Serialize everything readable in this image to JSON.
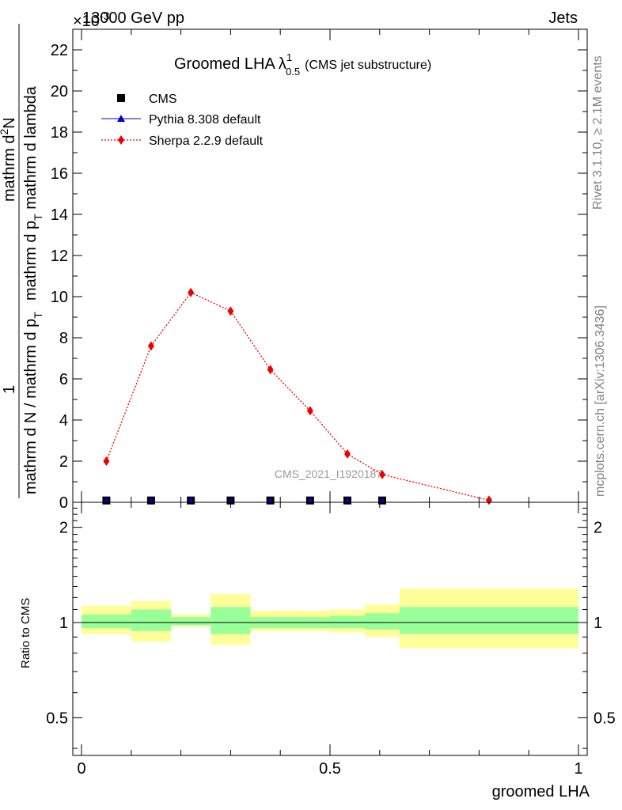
{
  "header": {
    "left": "13000 GeV pp",
    "right": "Jets",
    "exponent": "×10",
    "exponent_power": "-3"
  },
  "side": {
    "top": "Rivet 3.1.10, ≥ 2.1M events",
    "bottom": "mcplots.cern.ch [arXiv:1306.3436]"
  },
  "watermark": "CMS_2021_I1920187",
  "chart_data": [
    {
      "type": "scatter",
      "title": "Groomed LHA",
      "title_symbol": "λ",
      "title_sub": "0.5",
      "title_sup": "1",
      "title_suffix": "(CMS jet substructure)",
      "ylabel_num": "mathrm d²N",
      "ylabel_num_main": "mathrm d",
      "ylabel_num_sup": "2",
      "ylabel_num_end": "N",
      "ylabel_den": "mathrm d p",
      "ylabel_den_sub": "T",
      "ylabel_den_end": " mathrm d lambda",
      "ylabel_pre_num": "1",
      "ylabel_pre_den_a": "mathrm d N / mathrm d p",
      "ylabel_pre_den_sub": "T",
      "ylim": [
        0,
        23
      ],
      "xlim": [
        0,
        1
      ],
      "yticks": [
        "0",
        "2",
        "4",
        "6",
        "8",
        "10",
        "12",
        "14",
        "16",
        "18",
        "20",
        "22"
      ],
      "ytick_values": [
        0,
        2,
        4,
        6,
        8,
        10,
        12,
        14,
        16,
        18,
        20,
        22
      ],
      "legend_position": "top-left",
      "series": [
        {
          "name": "CMS",
          "marker": "square",
          "color": "#000000",
          "x": [
            0.05,
            0.14,
            0.22,
            0.3,
            0.38,
            0.46,
            0.535,
            0.605
          ],
          "y": [
            0.05,
            0.05,
            0.05,
            0.05,
            0.05,
            0.05,
            0.05,
            0.05
          ]
        },
        {
          "name": "Pythia 8.308 default",
          "marker": "triangle",
          "color": "#0000cc",
          "x": [
            0.05,
            0.14,
            0.22,
            0.3,
            0.38,
            0.46,
            0.535,
            0.605
          ],
          "y": [
            0.05,
            0.05,
            0.05,
            0.05,
            0.05,
            0.05,
            0.05,
            0.05
          ]
        },
        {
          "name": "Sherpa 2.2.9 default",
          "marker": "diamond",
          "color": "#ee0000",
          "x": [
            0.05,
            0.14,
            0.22,
            0.3,
            0.38,
            0.46,
            0.535,
            0.605,
            0.82
          ],
          "y": [
            2.0,
            7.6,
            10.2,
            9.3,
            6.45,
            4.45,
            2.35,
            1.35,
            0.1
          ]
        }
      ]
    },
    {
      "type": "area",
      "ylabel": "Ratio to CMS",
      "xlabel": "groomed LHA",
      "xlim": [
        0,
        1
      ],
      "ylim": [
        0.38,
        2.4
      ],
      "log_y": true,
      "xticks": [
        "0",
        "0.5",
        "1"
      ],
      "xtick_values": [
        0,
        0.5,
        1
      ],
      "yticks": [
        "0.5",
        "1",
        "2"
      ],
      "ytick_values": [
        0.5,
        1,
        2
      ],
      "reference": 1,
      "bins": [
        {
          "x0": 0.0,
          "x1": 0.1,
          "inner": [
            0.96,
            1.06
          ],
          "outer": [
            0.92,
            1.13
          ]
        },
        {
          "x0": 0.1,
          "x1": 0.18,
          "inner": [
            0.94,
            1.1
          ],
          "outer": [
            0.87,
            1.17
          ]
        },
        {
          "x0": 0.18,
          "x1": 0.26,
          "inner": [
            0.98,
            1.04
          ],
          "outer": [
            0.97,
            1.06
          ]
        },
        {
          "x0": 0.26,
          "x1": 0.34,
          "inner": [
            0.92,
            1.12
          ],
          "outer": [
            0.85,
            1.23
          ]
        },
        {
          "x0": 0.34,
          "x1": 0.5,
          "inner": [
            0.96,
            1.04
          ],
          "outer": [
            0.94,
            1.09
          ]
        },
        {
          "x0": 0.5,
          "x1": 0.57,
          "inner": [
            0.96,
            1.05
          ],
          "outer": [
            0.93,
            1.1
          ]
        },
        {
          "x0": 0.57,
          "x1": 0.64,
          "inner": [
            0.95,
            1.07
          ],
          "outer": [
            0.9,
            1.14
          ]
        },
        {
          "x0": 0.64,
          "x1": 1.0,
          "inner": [
            0.92,
            1.12
          ],
          "outer": [
            0.83,
            1.28
          ]
        }
      ]
    }
  ],
  "colors": {
    "inner_band": "#99ff99",
    "outer_band": "#ffff99",
    "axis": "#000000",
    "side_text": "#808080"
  }
}
